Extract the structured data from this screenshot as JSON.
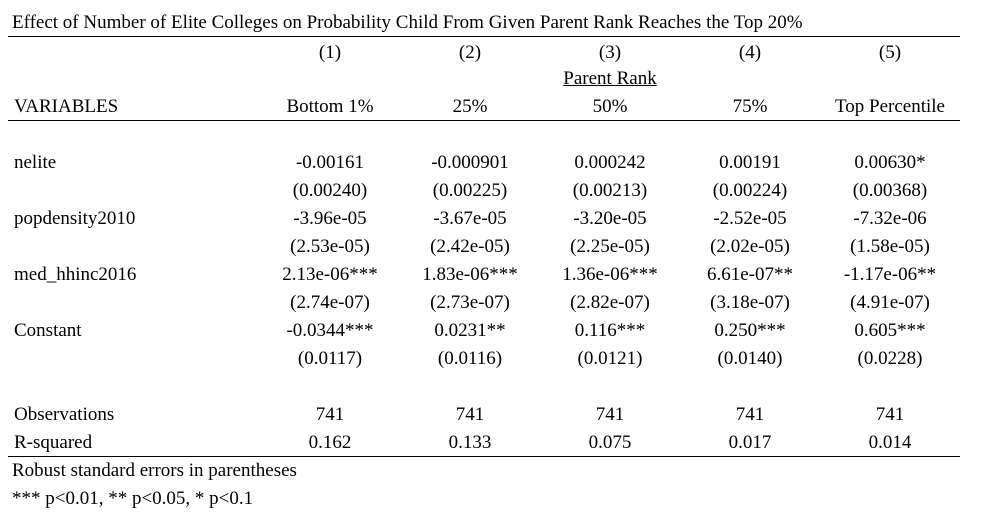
{
  "title": "Effect of Number of Elite Colleges on Probability Child From Given Parent Rank Reaches the Top 20%",
  "column_numbers": [
    "(1)",
    "(2)",
    "(3)",
    "(4)",
    "(5)"
  ],
  "group_header": "Parent Rank",
  "variables_header": "VARIABLES",
  "column_labels": [
    "Bottom 1%",
    "25%",
    "50%",
    "75%",
    "Top Percentile"
  ],
  "rows": [
    {
      "label": "nelite",
      "coef": [
        "-0.00161",
        "-0.000901",
        "0.000242",
        "0.00191",
        "0.00630*"
      ],
      "se": [
        "(0.00240)",
        "(0.00225)",
        "(0.00213)",
        "(0.00224)",
        "(0.00368)"
      ]
    },
    {
      "label": "popdensity2010",
      "coef": [
        "-3.96e-05",
        "-3.67e-05",
        "-3.20e-05",
        "-2.52e-05",
        "-7.32e-06"
      ],
      "se": [
        "(2.53e-05)",
        "(2.42e-05)",
        "(2.25e-05)",
        "(2.02e-05)",
        "(1.58e-05)"
      ]
    },
    {
      "label": "med_hhinc2016",
      "coef": [
        "2.13e-06***",
        "1.83e-06***",
        "1.36e-06***",
        "6.61e-07**",
        "-1.17e-06**"
      ],
      "se": [
        "(2.74e-07)",
        "(2.73e-07)",
        "(2.82e-07)",
        "(3.18e-07)",
        "(4.91e-07)"
      ]
    },
    {
      "label": "Constant",
      "coef": [
        "-0.0344***",
        "0.0231**",
        "0.116***",
        "0.250***",
        "0.605***"
      ],
      "se": [
        "(0.0117)",
        "(0.0116)",
        "(0.0121)",
        "(0.0140)",
        "(0.0228)"
      ]
    }
  ],
  "stats": [
    {
      "label": "Observations",
      "values": [
        "741",
        "741",
        "741",
        "741",
        "741"
      ]
    },
    {
      "label": "R-squared",
      "values": [
        "0.162",
        "0.133",
        "0.075",
        "0.017",
        "0.014"
      ]
    }
  ],
  "notes": [
    "Robust standard errors in parentheses",
    "*** p<0.01, ** p<0.05, * p<0.1"
  ]
}
